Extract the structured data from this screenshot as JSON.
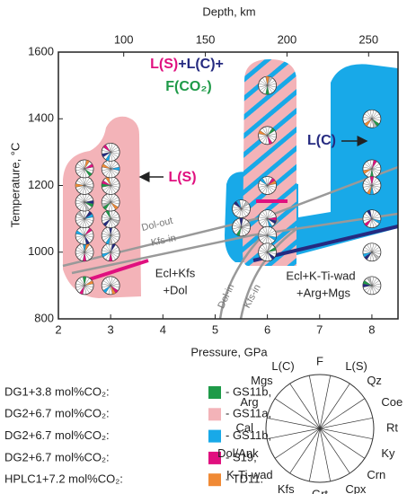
{
  "chart_data": {
    "type": "scatter",
    "title": null,
    "xlabel": "Pressure, GPa",
    "ylabel": "Temperature, °C",
    "x2label": "Depth, km",
    "xlim": [
      2,
      8.5
    ],
    "xticks": [
      2,
      3,
      4,
      5,
      6,
      7,
      8
    ],
    "ylim": [
      800,
      1600
    ],
    "yticks": [
      800,
      1000,
      1200,
      1400,
      1600
    ],
    "x2lim": [
      60,
      268
    ],
    "x2ticks": [
      100,
      150,
      200,
      250
    ],
    "points": {
      "x": [
        2.5,
        2.5,
        2.5,
        2.5,
        2.5,
        2.5,
        2.5,
        3,
        3,
        3,
        3,
        3,
        3,
        3,
        3,
        5.5,
        5.5,
        6,
        6,
        6,
        6,
        6,
        6,
        8,
        8,
        8,
        8,
        8,
        8
      ],
      "y": [
        900,
        1000,
        1050,
        1100,
        1150,
        1200,
        1250,
        900,
        1000,
        1050,
        1100,
        1150,
        1200,
        1250,
        1300,
        1130,
        1075,
        1500,
        1350,
        1200,
        1100,
        1050,
        1000,
        1400,
        1250,
        1200,
        1100,
        1000,
        900
      ]
    },
    "annotations": {
      "melt_fluid": [
        "L(S)",
        "+",
        "L(C)",
        "+",
        "F(CO₂)"
      ],
      "ls": "L(S)",
      "lc": "L(C)",
      "field1": [
        "Ecl+Kfs",
        "+Dol"
      ],
      "field2": [
        "Ecl+K-Ti-wad",
        "+Arg+Mgs"
      ],
      "lines": [
        "Dol-out",
        "Kfs-in",
        "Dol-in",
        "Kfs-in"
      ]
    },
    "legend": [
      {
        "label": "DG1+3.8 mol%CO₂:",
        "sample": "- GS11b,",
        "color": "#1e9a48"
      },
      {
        "label": "DG2+6.7 mol%CO₂:",
        "sample": "- GS11a,",
        "color": "#f3b3b8"
      },
      {
        "label": "DG2+6.7 mol%CO₂:",
        "sample": "- GS11b,",
        "color": "#18a9e8"
      },
      {
        "label": "DG2+6.7 mol%CO₂:",
        "sample": "- S19,",
        "color": "#e0107f"
      },
      {
        "label": "HPLC1+7.2 mol%CO₂:",
        "sample": "- TD11.",
        "color": "#f08a35"
      }
    ],
    "key_phases": [
      "F",
      "L(S)",
      "Qz",
      "Coe",
      "Rt",
      "Ky",
      "Crn",
      "Cpx",
      "Grt",
      "Kfs",
      "K-Ti-wad",
      "Dol/Ank",
      "Cal",
      "Arg",
      "Mgs",
      "L(C)"
    ]
  }
}
